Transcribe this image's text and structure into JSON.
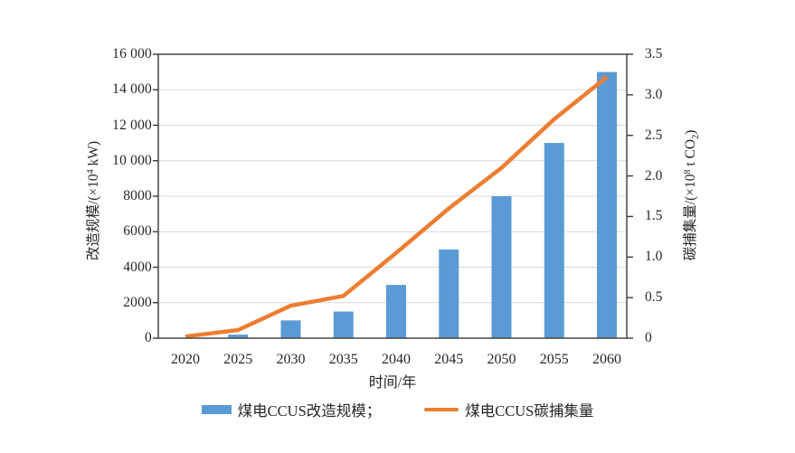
{
  "chart_data": {
    "type": "bar+line",
    "description": "Dual-axis combo chart: bars on left axis, line on right axis",
    "categories": [
      "2020",
      "2025",
      "2030",
      "2035",
      "2040",
      "2045",
      "2050",
      "2055",
      "2060"
    ],
    "series": [
      {
        "name": "煤电CCUS改造规模",
        "chart_type": "bar",
        "y_axis": "left",
        "color": "#5B9BD5",
        "values": [
          0,
          200,
          1000,
          1500,
          3000,
          5000,
          8000,
          11000,
          15000
        ]
      },
      {
        "name": "煤电CCUS碳捕集量",
        "chart_type": "line",
        "y_axis": "right",
        "color": "#ED7D31",
        "values": [
          0.02,
          0.1,
          0.4,
          0.52,
          1.05,
          1.6,
          2.1,
          2.7,
          3.22
        ]
      }
    ],
    "xlabel": "时间/年",
    "left_axis": {
      "label": "改造规模/(×10⁴ kW)",
      "label_parts": [
        {
          "t": "改造规模/(×10"
        },
        {
          "t": "4",
          "s": "sup"
        },
        {
          "t": " kW)"
        }
      ],
      "range": [
        0,
        16000
      ],
      "tick_step": 2000,
      "ticks": [
        "0",
        "2000",
        "4000",
        "6000",
        "8000",
        "10 000",
        "12 000",
        "14 000",
        "16 000"
      ]
    },
    "right_axis": {
      "label": "碳捕集量/(×10⁸ t CO₂)",
      "label_parts": [
        {
          "t": "碳捕集量/(×10"
        },
        {
          "t": "8",
          "s": "sup"
        },
        {
          "t": " t CO"
        },
        {
          "t": "2",
          "s": "sub"
        },
        {
          "t": ")"
        }
      ],
      "range": [
        0,
        3.5
      ],
      "tick_step": 0.5,
      "ticks": [
        "0",
        "0.5",
        "1.0",
        "1.5",
        "2.0",
        "2.5",
        "3.0",
        "3.5"
      ]
    },
    "grid": "horizontal",
    "legend": {
      "position": "bottom-center",
      "items": [
        {
          "label": "煤电CCUS改造规模；",
          "marker": "rect",
          "color": "#5B9BD5"
        },
        {
          "label": "煤电CCUS碳捕集量",
          "marker": "line",
          "color": "#ED7D31"
        }
      ]
    }
  },
  "colors": {
    "background": "#FFFFFF",
    "grid": "#D9D9D9",
    "axis": "#3A3A3A",
    "text": "#262626"
  }
}
